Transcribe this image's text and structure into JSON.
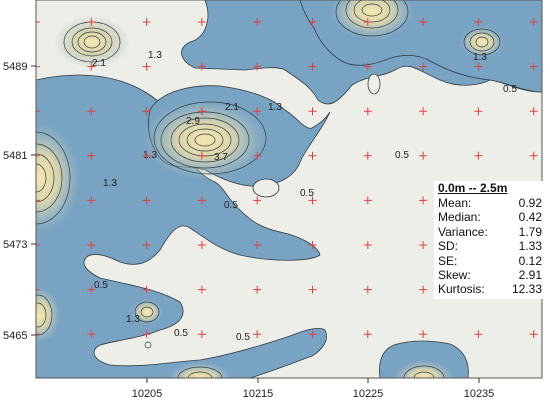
{
  "map": {
    "x_ticks": [
      "10205",
      "10215",
      "10225",
      "10235"
    ],
    "y_ticks": [
      "5489",
      "5481",
      "5473",
      "5465"
    ],
    "contour_labels": [
      "2.1",
      "1.3",
      "1.3",
      "0.5",
      "2.1",
      "2.9",
      "3.7",
      "1.3",
      "1.3",
      "1.3",
      "0.5",
      "0.5",
      "0.5",
      "0.5",
      "0.5",
      "1.3",
      "0.5"
    ],
    "colors": {
      "fill_low": "#6f9cbf",
      "fill_mid": "#b6c8c6",
      "fill_high": "#ead9a2",
      "background": "#eeeee8",
      "marker": "#e04040",
      "contour": "#2f3c42"
    }
  },
  "stats": {
    "title": "0.0m -- 2.5m",
    "rows": [
      {
        "label": "Mean:",
        "value": "0.92"
      },
      {
        "label": "Median:",
        "value": "0.42"
      },
      {
        "label": "Variance:",
        "value": "1.79"
      },
      {
        "label": "SD:",
        "value": "1.33"
      },
      {
        "label": "SE:",
        "value": "0.12"
      },
      {
        "label": "Skew:",
        "value": "2.91"
      },
      {
        "label": "Kurtosis:",
        "value": "12.33"
      }
    ]
  }
}
